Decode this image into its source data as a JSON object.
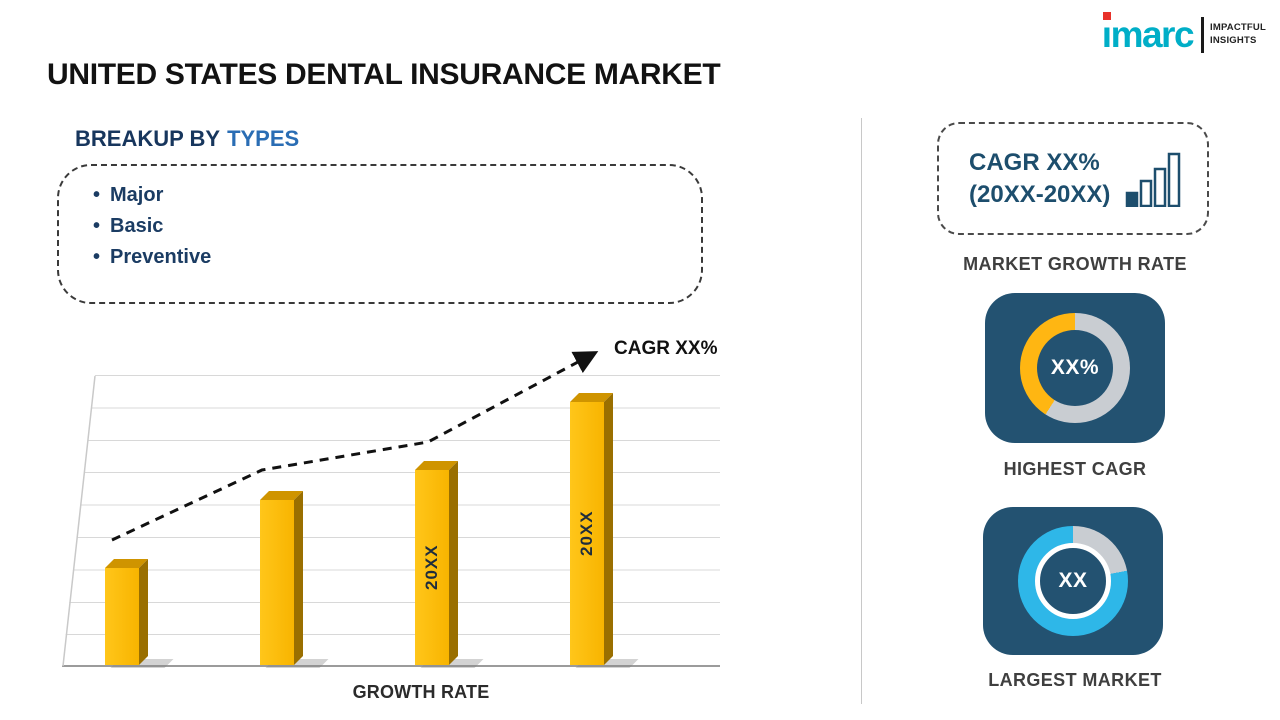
{
  "title": "UNITED STATES DENTAL INSURANCE MARKET",
  "logo": {
    "brand": "imarc",
    "tagline1": "IMPACTFUL",
    "tagline2": "INSIGHTS",
    "brand_color": "#00AEC7",
    "dot_color": "#E8312A"
  },
  "breakup": {
    "heading_prefix": "BREAKUP BY",
    "heading_highlight": "TYPES",
    "items": [
      "Major",
      "Basic",
      "Preventive"
    ]
  },
  "chart_data": [
    {
      "type": "bar",
      "title": "",
      "categories": [
        "",
        "",
        "20XX",
        "20XX"
      ],
      "values": [
        39,
        64,
        75,
        100
      ],
      "ylim": [
        0,
        100
      ],
      "xlabel": "GROWTH RATE",
      "ylabel": "",
      "annotation": "CAGR XX%",
      "grid": true,
      "legend": "none",
      "bar_color": "#FDBB0C",
      "trend_line": "dashed rising arrow over bar tops"
    },
    {
      "type": "donut",
      "label": "HIGHEST CAGR",
      "center_text": "XX%",
      "segments": [
        {
          "name": "highlighted-share",
          "value": 41,
          "color": "#FFB612"
        },
        {
          "name": "remainder",
          "value": 59,
          "color": "#C9CDD2"
        }
      ]
    },
    {
      "type": "donut",
      "label": "LARGEST MARKET",
      "center_text": "XX",
      "segments": [
        {
          "name": "highlighted-share",
          "value": 78,
          "color": "#2EB7E8"
        },
        {
          "name": "remainder",
          "value": 22,
          "color": "#C9CDD2"
        }
      ]
    }
  ],
  "right_panel": {
    "growth_box": {
      "line1": "CAGR XX%",
      "line2": "(20XX-20XX)"
    },
    "section_label": "MARKET GROWTH RATE"
  },
  "colors": {
    "navy_card": "#235271",
    "heading_navy": "#17365D",
    "heading_blue": "#2A6DB4"
  }
}
